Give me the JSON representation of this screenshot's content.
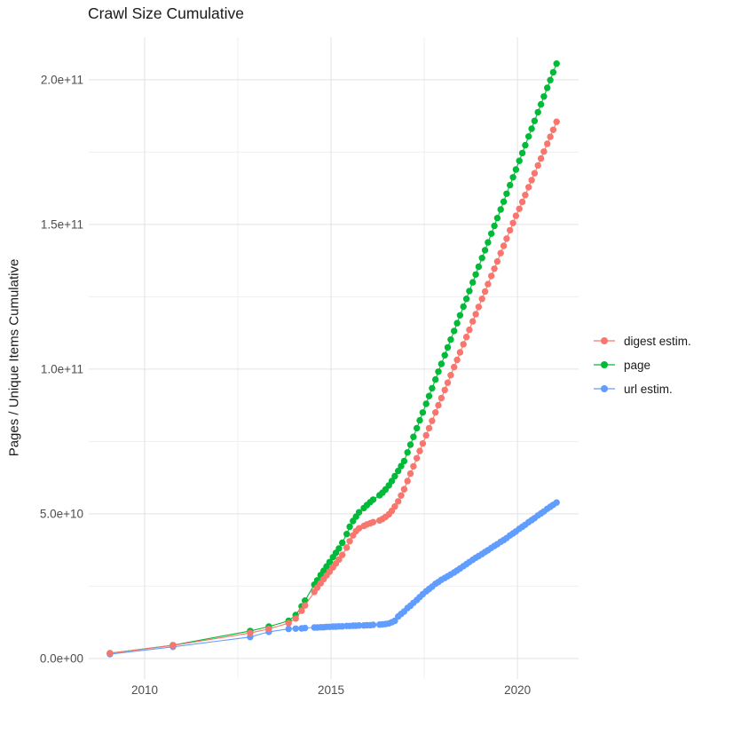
{
  "title": "Crawl Size Cumulative",
  "chart_data": {
    "type": "scatter",
    "title": "Crawl Size Cumulative",
    "xlabel": "",
    "ylabel": "Pages / Unique Items Cumulative",
    "legend_position": "right",
    "grid": true,
    "x_major_ticks": [
      2010,
      2015,
      2020
    ],
    "x_tick_labels": [
      "2010",
      "2015",
      "2020"
    ],
    "x_minor_ticks": [
      2012.5,
      2017.5
    ],
    "y_unit_multiplier": 1000000000.0,
    "y_major_ticks_billions": [
      0,
      50,
      100,
      150,
      200
    ],
    "y_tick_labels": [
      "0.0e+00",
      "5.0e+10",
      "1.0e+11",
      "1.5e+11",
      "2.0e+11"
    ],
    "y_minor_ticks_billions": [
      25,
      75,
      125,
      175
    ],
    "xlim": [
      2008.5,
      2021.64
    ],
    "ylim_billions": [
      -7.1,
      214.7
    ],
    "x": [
      2009.07,
      2010.76,
      2012.83,
      2013.33,
      2013.86,
      2014.05,
      2014.21,
      2014.3,
      2014.55,
      2014.63,
      2014.72,
      2014.8,
      2014.88,
      2014.96,
      2015.05,
      2015.13,
      2015.21,
      2015.3,
      2015.42,
      2015.5,
      2015.59,
      2015.67,
      2015.75,
      2015.88,
      2015.96,
      2016.05,
      2016.13,
      2016.3,
      2016.38,
      2016.46,
      2016.55,
      2016.63,
      2016.71,
      2016.8,
      2016.88,
      2016.96,
      2017.05,
      2017.13,
      2017.21,
      2017.3,
      2017.38,
      2017.46,
      2017.55,
      2017.63,
      2017.71,
      2017.8,
      2017.88,
      2017.96,
      2018.05,
      2018.13,
      2018.21,
      2018.3,
      2018.38,
      2018.46,
      2018.55,
      2018.63,
      2018.71,
      2018.8,
      2018.88,
      2018.96,
      2019.05,
      2019.13,
      2019.21,
      2019.3,
      2019.38,
      2019.46,
      2019.55,
      2019.63,
      2019.71,
      2019.8,
      2019.88,
      2019.96,
      2020.05,
      2020.13,
      2020.21,
      2020.3,
      2020.38,
      2020.46,
      2020.55,
      2020.63,
      2020.71,
      2020.8,
      2020.88,
      2020.96,
      2021.05
    ],
    "series": [
      {
        "name": "digest estim.",
        "color": "#F8766D",
        "values_billions": [
          1.8,
          4.5,
          8.8,
          10.2,
          12.2,
          13.8,
          16.5,
          18.3,
          23.0,
          24.5,
          26.0,
          27.4,
          28.7,
          30.0,
          31.5,
          32.8,
          34.2,
          35.8,
          38.3,
          40.5,
          42.5,
          44.0,
          45.0,
          45.8,
          46.3,
          46.7,
          47.1,
          47.7,
          48.2,
          48.9,
          49.8,
          51.0,
          52.5,
          54.3,
          56.3,
          58.5,
          61.3,
          63.9,
          66.4,
          69.2,
          71.7,
          74.3,
          77.1,
          79.6,
          82.1,
          85.0,
          87.5,
          90.0,
          92.8,
          95.3,
          97.9,
          100.7,
          103.2,
          105.8,
          108.6,
          111.1,
          113.6,
          116.5,
          119.0,
          121.5,
          124.3,
          126.8,
          129.4,
          132.2,
          134.7,
          137.2,
          140.1,
          142.6,
          145.1,
          148.0,
          150.5,
          153.0,
          155.4,
          157.8,
          160.2,
          162.9,
          165.3,
          167.7,
          170.4,
          172.8,
          175.2,
          177.9,
          180.3,
          182.7,
          185.5
        ]
      },
      {
        "name": "page",
        "color": "#00BA38",
        "values_billions": [
          1.8,
          4.6,
          9.5,
          11.0,
          13.0,
          15.0,
          18.0,
          20.0,
          25.5,
          27.0,
          28.8,
          30.3,
          31.8,
          33.3,
          35.0,
          36.5,
          38.0,
          40.0,
          43.0,
          45.5,
          47.5,
          49.0,
          50.5,
          52.0,
          53.0,
          54.0,
          54.9,
          56.4,
          57.3,
          58.4,
          59.8,
          61.3,
          63.0,
          64.8,
          66.5,
          68.2,
          71.2,
          73.9,
          76.6,
          79.6,
          82.3,
          85.0,
          88.0,
          90.7,
          93.4,
          96.4,
          99.1,
          101.8,
          104.8,
          107.5,
          110.2,
          113.2,
          115.9,
          118.6,
          121.6,
          124.3,
          127.0,
          130.0,
          132.7,
          135.4,
          138.4,
          141.1,
          143.8,
          146.8,
          149.5,
          152.2,
          155.2,
          157.9,
          160.6,
          163.6,
          166.3,
          169.0,
          172.0,
          174.7,
          177.4,
          180.4,
          183.1,
          185.8,
          188.8,
          191.5,
          194.2,
          197.2,
          199.9,
          202.6,
          205.6
        ]
      },
      {
        "name": "url estim.",
        "color": "#619CFF",
        "values_billions": [
          1.5,
          4.0,
          7.4,
          9.2,
          10.2,
          10.3,
          10.4,
          10.5,
          10.7,
          10.7,
          10.8,
          10.8,
          10.9,
          10.9,
          11.0,
          11.0,
          11.1,
          11.1,
          11.2,
          11.2,
          11.3,
          11.3,
          11.4,
          11.4,
          11.5,
          11.5,
          11.6,
          11.7,
          11.8,
          11.9,
          12.1,
          12.5,
          13.0,
          14.5,
          15.4,
          16.2,
          17.4,
          18.2,
          19.2,
          20.2,
          21.2,
          22.2,
          23.2,
          24.0,
          24.8,
          25.8,
          26.4,
          27.2,
          27.8,
          28.4,
          29.0,
          29.7,
          30.4,
          31.1,
          31.9,
          32.6,
          33.3,
          34.1,
          34.8,
          35.4,
          36.1,
          36.8,
          37.4,
          38.2,
          38.9,
          39.5,
          40.3,
          40.9,
          41.6,
          42.5,
          43.2,
          43.9,
          44.8,
          45.5,
          46.2,
          47.1,
          47.8,
          48.5,
          49.4,
          50.1,
          50.8,
          51.7,
          52.4,
          53.1,
          53.9
        ]
      }
    ],
    "style": {
      "grid_major_color": "#E2E2E2",
      "grid_minor_color": "#EFEFEF",
      "tick_label_color": "#4D4D4D",
      "point_radius": 3.7
    }
  }
}
